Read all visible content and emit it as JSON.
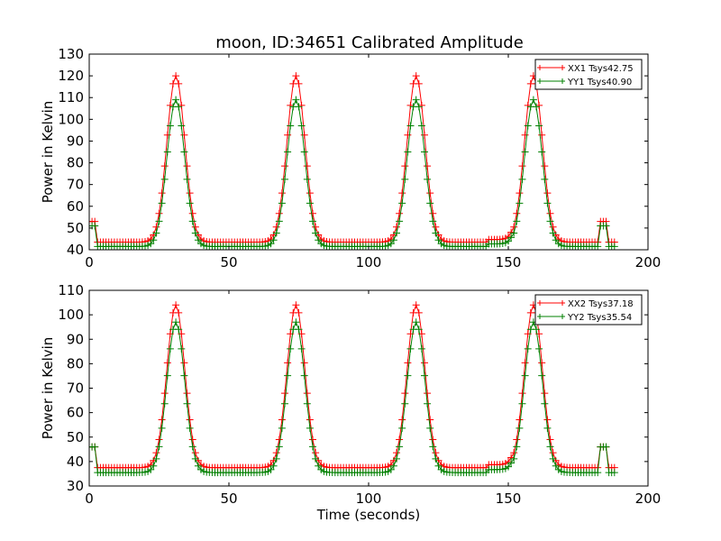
{
  "figure_title": "moon, ID:34651 Calibrated Amplitude",
  "colors": {
    "xx": "#ff0000",
    "yy": "#008000",
    "axes": "#000000",
    "background": "#ffffff"
  },
  "chart_data": [
    {
      "type": "line",
      "marker": "+",
      "title": "moon, ID:34651 Calibrated Amplitude",
      "xlabel": "",
      "ylabel": "Power in Kelvin",
      "xlim": [
        0,
        200
      ],
      "ylim": [
        40,
        130
      ],
      "xticks": [
        0,
        50,
        100,
        150,
        200
      ],
      "yticks": [
        40,
        50,
        60,
        70,
        80,
        90,
        100,
        110,
        120,
        130
      ],
      "grid": false,
      "legend_position": "top-right",
      "x": {
        "start": 0,
        "stop": 188,
        "step": 1
      },
      "series": [
        {
          "name": "XX1 Tsys42.75",
          "color": "#ff0000",
          "baseline": 43.5,
          "peak": 120,
          "edge_level": 53,
          "peaks": [
            {
              "x": 31,
              "y": 120
            },
            {
              "x": 74,
              "y": 120
            },
            {
              "x": 117,
              "y": 120
            },
            {
              "x": 159,
              "y": 120
            }
          ],
          "segments": [
            {
              "x": [
                0,
                2
              ],
              "y": 53
            },
            {
              "x": [
                183,
                185
              ],
              "y": 53
            },
            {
              "x": [
                186,
                188
              ],
              "y": 43.5
            }
          ]
        },
        {
          "name": "YY1 Tsys40.90",
          "color": "#008000",
          "baseline": 41.5,
          "peak": 109,
          "edge_level": 51,
          "peaks": [
            {
              "x": 31,
              "y": 109
            },
            {
              "x": 74,
              "y": 109
            },
            {
              "x": 117,
              "y": 109
            },
            {
              "x": 159,
              "y": 109
            }
          ],
          "segments": [
            {
              "x": [
                0,
                2
              ],
              "y": 51
            },
            {
              "x": [
                183,
                185
              ],
              "y": 51
            },
            {
              "x": [
                186,
                188
              ],
              "y": 41.5
            }
          ]
        }
      ]
    },
    {
      "type": "line",
      "marker": "+",
      "title": "",
      "xlabel": "Time (seconds)",
      "ylabel": "Power in Kelvin",
      "xlim": [
        0,
        200
      ],
      "ylim": [
        30,
        110
      ],
      "xticks": [
        0,
        50,
        100,
        150,
        200
      ],
      "yticks": [
        30,
        40,
        50,
        60,
        70,
        80,
        90,
        100,
        110
      ],
      "grid": false,
      "legend_position": "top-right",
      "x": {
        "start": 0,
        "stop": 188,
        "step": 1
      },
      "series": [
        {
          "name": "XX2 Tsys37.18",
          "color": "#ff0000",
          "baseline": 37.5,
          "peak": 104,
          "edge_level": 46,
          "peaks": [
            {
              "x": 31,
              "y": 104
            },
            {
              "x": 74,
              "y": 104
            },
            {
              "x": 117,
              "y": 104
            },
            {
              "x": 159,
              "y": 104
            }
          ],
          "segments": [
            {
              "x": [
                0,
                2
              ],
              "y": 46
            },
            {
              "x": [
                183,
                185
              ],
              "y": 46
            },
            {
              "x": [
                186,
                188
              ],
              "y": 37.5
            }
          ]
        },
        {
          "name": "YY2 Tsys35.54",
          "color": "#008000",
          "baseline": 35.5,
          "peak": 97,
          "edge_level": 46,
          "peaks": [
            {
              "x": 31,
              "y": 97
            },
            {
              "x": 74,
              "y": 97
            },
            {
              "x": 117,
              "y": 97
            },
            {
              "x": 159,
              "y": 97
            }
          ],
          "segments": [
            {
              "x": [
                0,
                2
              ],
              "y": 46
            },
            {
              "x": [
                183,
                185
              ],
              "y": 46
            },
            {
              "x": [
                186,
                188
              ],
              "y": 35.5
            }
          ]
        }
      ]
    }
  ]
}
